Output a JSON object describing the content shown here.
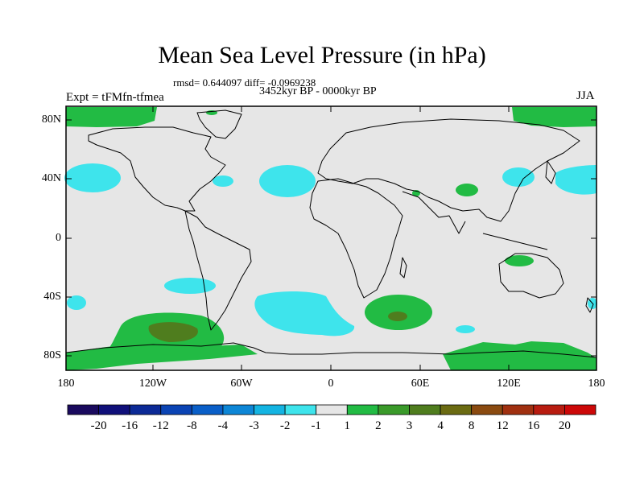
{
  "header": {
    "title": "Mean Sea Level Pressure (in hPa)",
    "stats": "rmsd= 0.644097 diff= -0.0969238",
    "period": "3452kyr BP - 0000kyr BP",
    "experiment": "Expt = tFMfn-tfmea",
    "season": "JJA"
  },
  "axes": {
    "lat_labels": [
      "80N",
      "40N",
      "0",
      "40S",
      "80S"
    ],
    "lon_labels": [
      "180",
      "120W",
      "60W",
      "0",
      "60E",
      "120E",
      "180"
    ]
  },
  "colorbar": {
    "labels": [
      "-20",
      "-16",
      "-12",
      "-8",
      "-4",
      "-3",
      "-2",
      "-1",
      "1",
      "2",
      "3",
      "4",
      "8",
      "12",
      "16",
      "20"
    ],
    "colors": [
      "#1a0a5e",
      "#10107a",
      "#0c2a96",
      "#0b44b4",
      "#0a5fc8",
      "#0d86d6",
      "#14b4e2",
      "#3ee4ec",
      "#e6e6e6",
      "#22bb44",
      "#3a9a2a",
      "#4f7d1e",
      "#6b6b12",
      "#8a4a10",
      "#a03010",
      "#b81c10",
      "#cc0808"
    ]
  },
  "map": {
    "ocean_color": "#e6e6e6",
    "coast_color": "#000000"
  }
}
